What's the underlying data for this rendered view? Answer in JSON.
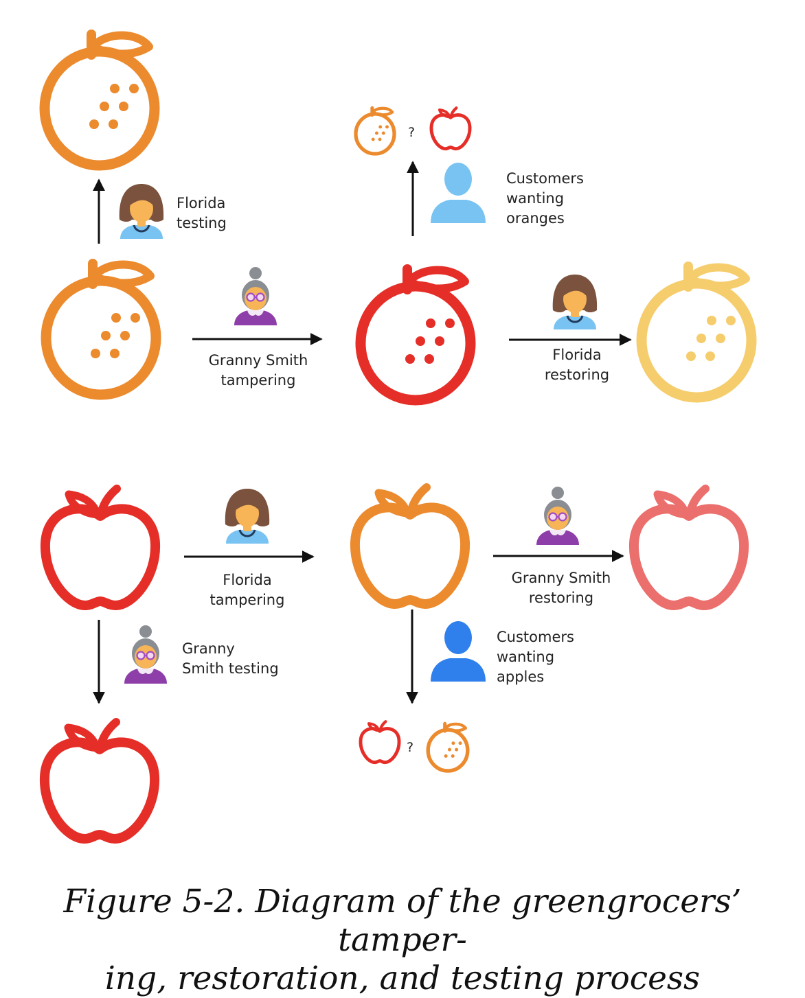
{
  "labels": {
    "florida_testing": [
      "Florida",
      "testing"
    ],
    "customers_wanting_oranges": [
      "Customers",
      "wanting",
      "oranges"
    ],
    "granny_smith_tampering": [
      "Granny Smith",
      "tampering"
    ],
    "florida_restoring": [
      "Florida",
      "restoring"
    ],
    "florida_tampering": [
      "Florida",
      "tampering"
    ],
    "granny_smith_restoring": [
      "Granny Smith",
      "restoring"
    ],
    "granny_smith_testing": [
      "Granny",
      "Smith testing"
    ],
    "customers_wanting_apples": [
      "Customers",
      "wanting",
      "apples"
    ],
    "question_mark": "?"
  },
  "caption": {
    "line1": "Figure 5-2. Diagram of the greengrocers’ tamper-",
    "line2": "ing, restoration, and testing process"
  },
  "colors": {
    "orange": "#ec8a2e",
    "red": "#e62e28",
    "pale_orange": "#f6cd6d",
    "pink": "#eb6f6c",
    "light_blue": "#79c3f2",
    "blue": "#2f80ec",
    "purple": "#8d3ea8",
    "skin": "#f7b557",
    "hair_brown": "#7a523d",
    "hair_grey": "#8a8d91",
    "arrow": "#111111"
  },
  "icons": [
    "orange-icon",
    "apple-icon",
    "florida-woman-icon",
    "granny-smith-icon",
    "customer-person-icon",
    "arrow-icon"
  ]
}
